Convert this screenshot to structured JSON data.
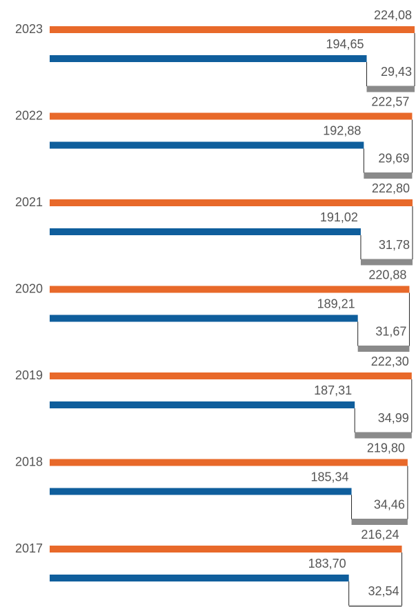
{
  "chart_data": {
    "type": "bar",
    "orientation": "horizontal",
    "categories": [
      "2023",
      "2022",
      "2021",
      "2020",
      "2019",
      "2018",
      "2017"
    ],
    "series": [
      {
        "color": "#e8692a",
        "values": [
          224.08,
          222.57,
          222.8,
          220.88,
          222.3,
          219.8,
          216.24
        ],
        "value_labels": [
          "224,08",
          "222,57",
          "222,80",
          "220,88",
          "222,30",
          "219,80",
          "216,24"
        ]
      },
      {
        "color": "#0f5e9c",
        "values": [
          194.65,
          192.88,
          191.02,
          189.21,
          187.31,
          185.34,
          183.7
        ],
        "value_labels": [
          "194,65",
          "192,88",
          "191,02",
          "189,21",
          "187,31",
          "185,34",
          "183,70"
        ]
      },
      {
        "color": "#8a8a8a",
        "stacked_on": 1,
        "values": [
          29.43,
          29.69,
          31.78,
          31.67,
          34.99,
          34.46,
          32.54
        ],
        "value_labels": [
          "29,43",
          "29,69",
          "31,78",
          "31,67",
          "34,99",
          "34,46",
          "32,54"
        ]
      }
    ]
  }
}
